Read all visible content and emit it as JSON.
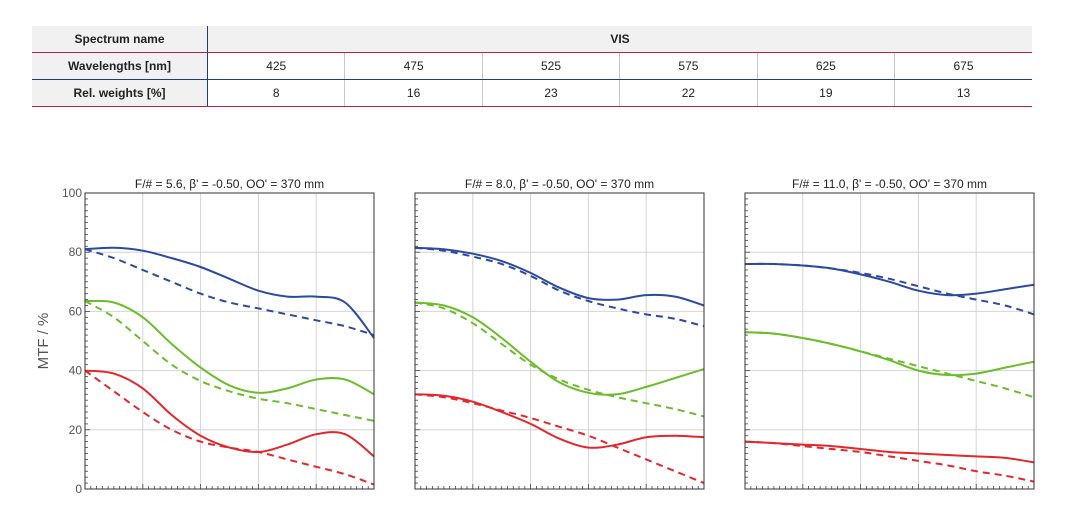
{
  "table": {
    "spectrum_label": "Spectrum name",
    "spectrum_value": "VIS",
    "wavelengths_label": "Wavelengths [nm]",
    "wavelengths": [
      "425",
      "475",
      "525",
      "575",
      "625",
      "675"
    ],
    "weights_label": "Rel. weights [%]",
    "weights": [
      "8",
      "16",
      "23",
      "22",
      "19",
      "13"
    ]
  },
  "colors": {
    "blue": "#2b4aa0",
    "green": "#6bbd2b",
    "red": "#e2282c"
  },
  "chart_data": {
    "type": "line",
    "ylabel": "MTF / %",
    "ylim": [
      0,
      100
    ],
    "yticks": [
      "0",
      "20",
      "40",
      "60",
      "80",
      "100"
    ],
    "xlim": [
      0,
      100
    ],
    "grid": true,
    "panels": [
      {
        "title": "F/# = 5.6, β' = -0.50, OO' = 370 mm",
        "series": [
          {
            "color": "blue",
            "style": "solid",
            "x": [
              0,
              10,
              20,
              30,
              40,
              50,
              60,
              70,
              80,
              90,
              100
            ],
            "y": [
              81,
              81.5,
              80.5,
              78,
              75,
              71,
              67,
              65,
              65,
              63,
              51
            ]
          },
          {
            "color": "blue",
            "style": "dashed",
            "x": [
              0,
              10,
              20,
              30,
              40,
              50,
              60,
              70,
              80,
              90,
              100
            ],
            "y": [
              81,
              78,
              74,
              70,
              66,
              63,
              61,
              59,
              57,
              55,
              52
            ]
          },
          {
            "color": "green",
            "style": "solid",
            "x": [
              0,
              10,
              20,
              30,
              40,
              50,
              60,
              70,
              80,
              90,
              100
            ],
            "y": [
              63.5,
              63,
              58,
              49,
              41,
              35,
              32.5,
              34,
              37,
              37,
              32
            ]
          },
          {
            "color": "green",
            "style": "dashed",
            "x": [
              0,
              10,
              20,
              30,
              40,
              50,
              60,
              70,
              80,
              90,
              100
            ],
            "y": [
              63.5,
              58,
              50,
              42,
              36.5,
              33,
              30.5,
              29,
              27,
              25,
              23
            ]
          },
          {
            "color": "red",
            "style": "solid",
            "x": [
              0,
              10,
              20,
              30,
              40,
              50,
              60,
              70,
              80,
              90,
              100
            ],
            "y": [
              40,
              39,
              34,
              25,
              18,
              14,
              12.5,
              15,
              18.5,
              18.5,
              11
            ]
          },
          {
            "color": "red",
            "style": "dashed",
            "x": [
              0,
              10,
              20,
              30,
              40,
              50,
              60,
              70,
              80,
              90,
              100
            ],
            "y": [
              40,
              33,
              26,
              20,
              16,
              14,
              12.5,
              10,
              7.5,
              5,
              1.5
            ]
          }
        ]
      },
      {
        "title": "F/# = 8.0, β' = -0.50, OO' = 370 mm",
        "series": [
          {
            "color": "blue",
            "style": "solid",
            "x": [
              0,
              10,
              20,
              30,
              40,
              50,
              60,
              70,
              80,
              90,
              100
            ],
            "y": [
              81.5,
              81,
              79.5,
              77,
              73,
              68,
              64.5,
              64,
              65.5,
              65,
              62
            ]
          },
          {
            "color": "blue",
            "style": "dashed",
            "x": [
              0,
              10,
              20,
              30,
              40,
              50,
              60,
              70,
              80,
              90,
              100
            ],
            "y": [
              81.5,
              80.5,
              78.5,
              76,
              72,
              67,
              63.5,
              61,
              59,
              57.5,
              55
            ]
          },
          {
            "color": "green",
            "style": "solid",
            "x": [
              0,
              10,
              20,
              30,
              40,
              50,
              60,
              70,
              80,
              90,
              100
            ],
            "y": [
              63,
              62,
              58,
              51,
              43,
              36,
              32.5,
              32,
              34.5,
              37.5,
              40.5
            ]
          },
          {
            "color": "green",
            "style": "dashed",
            "x": [
              0,
              10,
              20,
              30,
              40,
              50,
              60,
              70,
              80,
              90,
              100
            ],
            "y": [
              63,
              61,
              56,
              49,
              42,
              37,
              33.5,
              31,
              29,
              27,
              24.5
            ]
          },
          {
            "color": "red",
            "style": "solid",
            "x": [
              0,
              10,
              20,
              30,
              40,
              50,
              60,
              70,
              80,
              90,
              100
            ],
            "y": [
              32,
              31.5,
              29.5,
              26,
              22,
              17,
              14,
              15,
              17.5,
              18,
              17.5
            ]
          },
          {
            "color": "red",
            "style": "dashed",
            "x": [
              0,
              10,
              20,
              30,
              40,
              50,
              60,
              70,
              80,
              90,
              100
            ],
            "y": [
              32,
              31,
              29,
              26.5,
              24,
              21,
              18,
              14,
              10,
              6,
              2
            ]
          }
        ]
      },
      {
        "title": "F/# = 11.0, β' = -0.50, OO' = 370 mm",
        "series": [
          {
            "color": "blue",
            "style": "solid",
            "x": [
              0,
              10,
              20,
              30,
              40,
              50,
              60,
              70,
              80,
              90,
              100
            ],
            "y": [
              76,
              76,
              75.5,
              74.5,
              72.5,
              70,
              67,
              65.5,
              66,
              67.5,
              69
            ]
          },
          {
            "color": "blue",
            "style": "dashed",
            "x": [
              0,
              10,
              20,
              30,
              40,
              50,
              60,
              70,
              80,
              90,
              100
            ],
            "y": [
              76,
              76,
              75.5,
              74.5,
              73,
              71,
              68.5,
              66,
              64,
              62,
              59
            ]
          },
          {
            "color": "green",
            "style": "solid",
            "x": [
              0,
              10,
              20,
              30,
              40,
              50,
              60,
              70,
              80,
              90,
              100
            ],
            "y": [
              53,
              52.5,
              51,
              49,
              46.5,
              43.5,
              40,
              38.5,
              39,
              41,
              43
            ]
          },
          {
            "color": "green",
            "style": "dashed",
            "x": [
              0,
              10,
              20,
              30,
              40,
              50,
              60,
              70,
              80,
              90,
              100
            ],
            "y": [
              53,
              52.5,
              51,
              49,
              46.5,
              44,
              41.5,
              39,
              36.5,
              34,
              31
            ]
          },
          {
            "color": "red",
            "style": "solid",
            "x": [
              0,
              10,
              20,
              30,
              40,
              50,
              60,
              70,
              80,
              90,
              100
            ],
            "y": [
              16,
              15.5,
              15,
              14.5,
              13.5,
              12.5,
              12,
              11.5,
              11,
              10.5,
              9
            ]
          },
          {
            "color": "red",
            "style": "dashed",
            "x": [
              0,
              10,
              20,
              30,
              40,
              50,
              60,
              70,
              80,
              90,
              100
            ],
            "y": [
              16,
              15.5,
              14.5,
              13.5,
              12.5,
              11,
              9.5,
              8,
              6,
              4.5,
              2.5
            ]
          }
        ]
      }
    ]
  }
}
